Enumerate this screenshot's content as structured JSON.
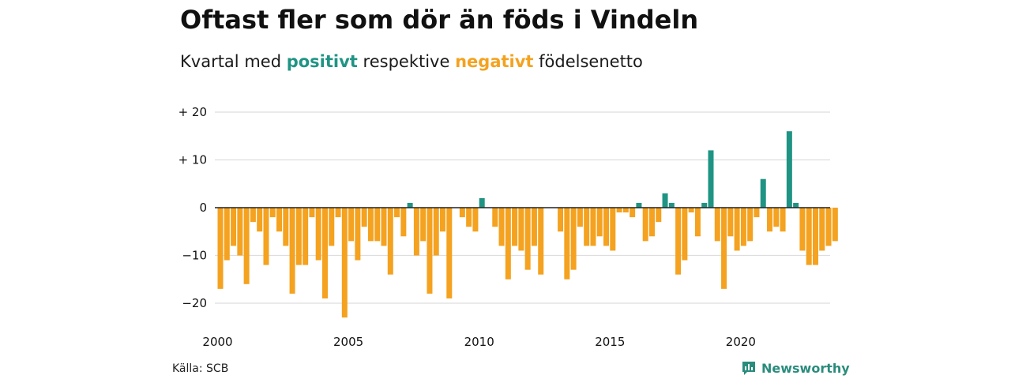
{
  "title": "Oftast fler som dör än föds i Vindeln",
  "subtitle": {
    "prefix": "Kvartal med",
    "positive_word": "positivt",
    "middle": "respektive",
    "negative_word": "negativt",
    "suffix": "födelsenetto"
  },
  "colors": {
    "positive": "#1f9484",
    "negative": "#f4a21f",
    "grid": "#dddddd",
    "zero": "#222222"
  },
  "source": "Källa: SCB",
  "brand": {
    "name": "Newsworthy",
    "icon": "newsworthy-logo-icon"
  },
  "chart_data": {
    "type": "bar",
    "title": "Oftast fler som dör än föds i Vindeln",
    "xlabel": "",
    "ylabel": "",
    "ylim": [
      -25,
      20
    ],
    "yticks": [
      {
        "value": 20,
        "label": "+ 20"
      },
      {
        "value": 10,
        "label": "+ 10"
      },
      {
        "value": 0,
        "label": "0"
      },
      {
        "value": -10,
        "label": "−10"
      },
      {
        "value": -20,
        "label": "−20"
      }
    ],
    "xticks": [
      "2000",
      "2005",
      "2010",
      "2015",
      "2020"
    ],
    "start_year": 2000,
    "grid": true,
    "values": [
      -17,
      -11,
      -8,
      -10,
      -16,
      -3,
      -5,
      -12,
      -2,
      -5,
      -8,
      -18,
      -12,
      -12,
      -2,
      -11,
      -19,
      -8,
      -2,
      -23,
      -7,
      -11,
      -4,
      -7,
      -7,
      -8,
      -14,
      -2,
      -6,
      1,
      -10,
      -7,
      -18,
      -10,
      -5,
      -19,
      0,
      -2,
      -4,
      -5,
      2,
      0,
      -4,
      -8,
      -15,
      -8,
      -9,
      -13,
      -8,
      -14,
      0,
      0,
      -5,
      -15,
      -13,
      -4,
      -8,
      -8,
      -6,
      -8,
      -9,
      -1,
      -1,
      -2,
      1,
      -7,
      -6,
      -3,
      3,
      1,
      -14,
      -11,
      -1,
      -6,
      1,
      12,
      -7,
      -17,
      -6,
      -9,
      -8,
      -7,
      -2,
      6,
      -5,
      -4,
      -5,
      16,
      1,
      -9,
      -12,
      -12,
      -9,
      -8,
      -7
    ]
  }
}
